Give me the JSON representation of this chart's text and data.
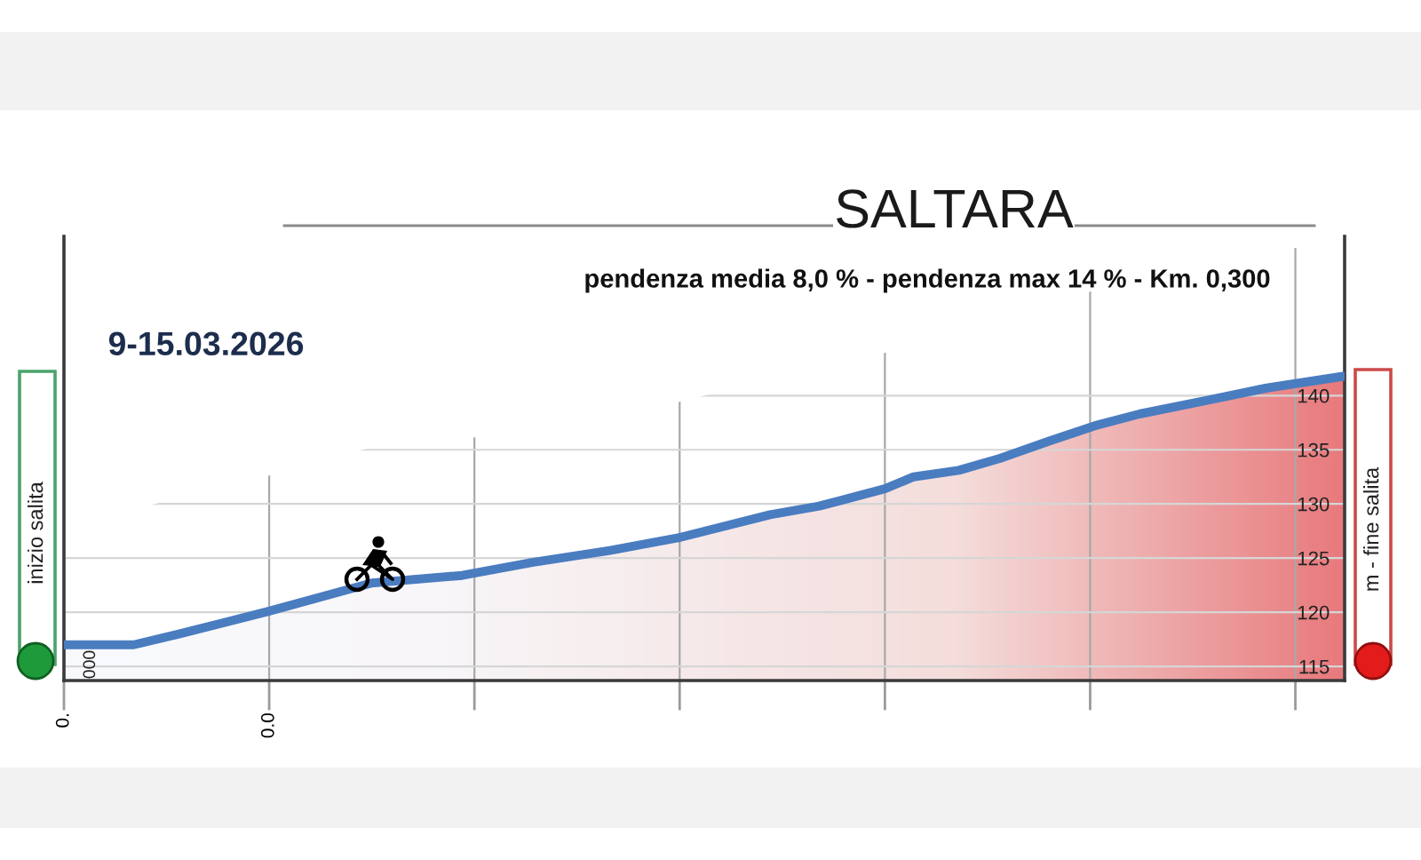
{
  "chart_data": {
    "type": "area",
    "title": "SALTARA",
    "subtitle": "pendenza media 8,0 % - pendenza max 14 % - Km. 0,300",
    "annotations": [
      "9-15.03.2026",
      "inizio salita",
      "m - fine salita",
      "000"
    ],
    "x": [
      0.0,
      0.017,
      0.028,
      0.05,
      0.075,
      0.097,
      0.114,
      0.133,
      0.15,
      0.172,
      0.184,
      0.189,
      0.2,
      0.207,
      0.218,
      0.228,
      0.24,
      0.251,
      0.262,
      0.279,
      0.293,
      0.312
    ],
    "series": [
      {
        "color": "#4a7cc0",
        "values": [
          117.0,
          117.0,
          118.0,
          120.1,
          122.7,
          123.4,
          124.6,
          125.7,
          126.9,
          129.0,
          129.8,
          130.3,
          131.4,
          132.5,
          133.1,
          134.2,
          135.8,
          137.2,
          138.3,
          139.6,
          140.7,
          141.8
        ]
      }
    ],
    "xlim": [
      0,
      0.312
    ],
    "xticks": [
      {
        "value": 0,
        "label": "0."
      },
      {
        "value": 0.05,
        "label": "0.0"
      },
      {
        "value": 0.1,
        "label": null
      },
      {
        "value": 0.15,
        "label": null
      },
      {
        "value": 0.2,
        "label": null
      },
      {
        "value": 0.25,
        "label": null
      },
      {
        "value": 0.3,
        "label": null
      }
    ],
    "ylim": [
      113.7,
      154.7
    ],
    "yticks": [
      115,
      120,
      125,
      130,
      135,
      140
    ],
    "grid": true
  }
}
